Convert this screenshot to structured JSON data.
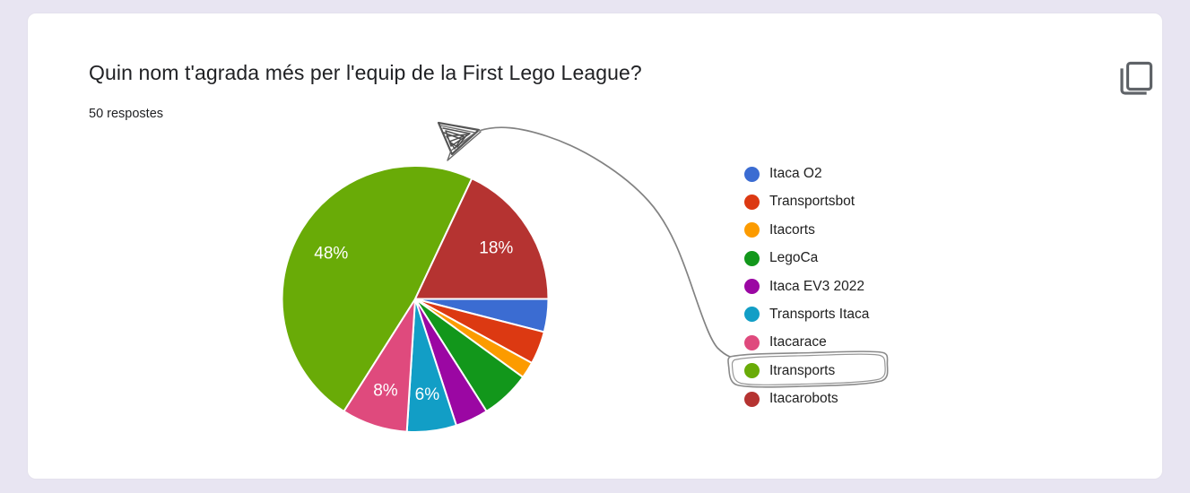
{
  "header": {
    "title": "Quin nom t'agrada més per l'equip de la First Lego League?",
    "responses_label": "50 respostes",
    "copy_icon": "copy-icon",
    "icon_color": "#5F6368"
  },
  "chart_data": {
    "type": "pie",
    "title": "Quin nom t'agrada més per l'equip de la First Lego League?",
    "total_responses": 50,
    "start_angle_deg": 0,
    "direction": "clockwise",
    "legend_position": "right",
    "slice_border_color": "#FFFFFF",
    "series": [
      {
        "label": "Itaca O2",
        "pct": 4,
        "count": 2,
        "color": "#3B6CD2",
        "slice_label": ""
      },
      {
        "label": "Transportsbot",
        "pct": 4,
        "count": 2,
        "color": "#DC3912",
        "slice_label": ""
      },
      {
        "label": "Itacorts",
        "pct": 2,
        "count": 1,
        "color": "#FC9B00",
        "slice_label": ""
      },
      {
        "label": "LegoCa",
        "pct": 6,
        "count": 3,
        "color": "#12971B",
        "slice_label": ""
      },
      {
        "label": "Itaca EV3 2022",
        "pct": 4,
        "count": 2,
        "color": "#9B07A3",
        "slice_label": ""
      },
      {
        "label": "Transports Itaca",
        "pct": 6,
        "count": 3,
        "color": "#129EC6",
        "slice_label": "6%"
      },
      {
        "label": "Itacarace",
        "pct": 8,
        "count": 4,
        "color": "#DF4A7D",
        "slice_label": "8%"
      },
      {
        "label": "Itransports",
        "pct": 48,
        "count": 24,
        "color": "#69AB07",
        "slice_label": "48%"
      },
      {
        "label": "Itacarobots",
        "pct": 18,
        "count": 9,
        "color": "#B53331",
        "slice_label": "18%"
      }
    ]
  },
  "annotation": {
    "type": "hand-drawn",
    "highlighted_legend_item": "Itransports",
    "points_at_slice": "Itransports / Itacarobots boundary",
    "color": "#7A7A7A"
  }
}
